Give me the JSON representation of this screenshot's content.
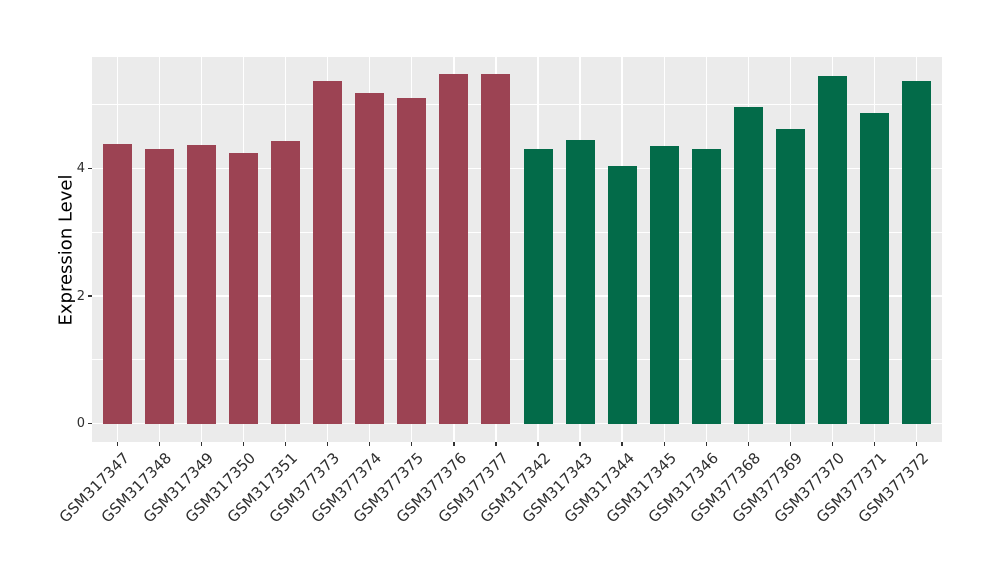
{
  "chart_data": {
    "type": "bar",
    "title": "",
    "xlabel": "",
    "ylabel": "Expression Level",
    "categories": [
      "GSM317347",
      "GSM317348",
      "GSM317349",
      "GSM317350",
      "GSM317351",
      "GSM377373",
      "GSM377374",
      "GSM377375",
      "GSM377376",
      "GSM377377",
      "GSM317342",
      "GSM317343",
      "GSM317344",
      "GSM317345",
      "GSM317346",
      "GSM377368",
      "GSM377369",
      "GSM377370",
      "GSM377371",
      "GSM377372"
    ],
    "values": [
      4.38,
      4.3,
      4.37,
      4.24,
      4.44,
      5.37,
      5.18,
      5.1,
      5.48,
      5.48,
      4.31,
      4.45,
      4.04,
      4.35,
      4.31,
      4.96,
      4.62,
      5.45,
      4.87,
      5.37
    ],
    "bar_colors": [
      "#9C4353",
      "#9C4353",
      "#9C4353",
      "#9C4353",
      "#9C4353",
      "#9C4353",
      "#9C4353",
      "#9C4353",
      "#9C4353",
      "#9C4353",
      "#036B49",
      "#036B49",
      "#036B49",
      "#036B49",
      "#036B49",
      "#036B49",
      "#036B49",
      "#036B49",
      "#036B49",
      "#036B49"
    ],
    "group_colors": {
      "left_group": "#9C4353",
      "right_group": "#036B49"
    },
    "ylim": [
      -0.29,
      5.75
    ],
    "yticks_major": [
      0,
      2,
      4
    ],
    "ytick_labels": [
      "0",
      "2",
      "4"
    ],
    "yticks_minor": [
      1,
      3,
      5
    ],
    "grid": true,
    "legend": "none",
    "x_label_rotation_deg": 45,
    "colors": {
      "panel_background": "#EBEBEB",
      "gridline": "#FFFFFF",
      "tick_mark": "#333333",
      "tick_label": "#2e2e2e",
      "axis_title": "#000000",
      "figure_background": "#FFFFFF"
    }
  }
}
